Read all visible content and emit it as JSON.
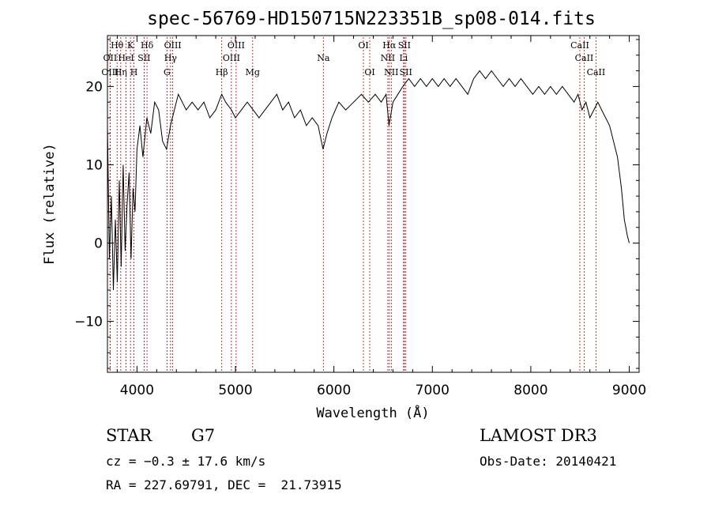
{
  "chart_data": {
    "type": "line",
    "title": "spec-56769-HD150715N223351B_sp08-014.fits",
    "xlabel": "Wavelength (Å)",
    "ylabel": "Flux (relative)",
    "xlim": [
      3700,
      9100
    ],
    "ylim": [
      -16.5,
      26.5
    ],
    "xticks": [
      4000,
      5000,
      6000,
      7000,
      8000,
      9000
    ],
    "yticks": [
      -10,
      0,
      10,
      20
    ],
    "line_color": "#000000",
    "marker_color": "#c00000",
    "series": [
      {
        "x": [
          3700,
          3720,
          3740,
          3760,
          3780,
          3800,
          3820,
          3840,
          3860,
          3880,
          3900,
          3920,
          3940,
          3960,
          3980,
          4000,
          4030,
          4060,
          4100,
          4140,
          4180,
          4220,
          4260,
          4300,
          4340,
          4380,
          4420,
          4460,
          4500,
          4560,
          4620,
          4680,
          4740,
          4800,
          4860,
          4900,
          4960,
          5000,
          5060,
          5120,
          5180,
          5240,
          5300,
          5360,
          5420,
          5480,
          5540,
          5600,
          5660,
          5720,
          5780,
          5840,
          5890,
          5930,
          5980,
          6050,
          6120,
          6200,
          6280,
          6350,
          6420,
          6480,
          6530,
          6560,
          6600,
          6650,
          6700,
          6760,
          6820,
          6880,
          6940,
          7000,
          7060,
          7120,
          7180,
          7240,
          7300,
          7360,
          7420,
          7480,
          7540,
          7600,
          7660,
          7720,
          7780,
          7840,
          7900,
          7960,
          8020,
          8080,
          8140,
          8200,
          8260,
          8320,
          8380,
          8440,
          8480,
          8520,
          8560,
          8600,
          8640,
          8680,
          8720,
          8760,
          8800,
          8840,
          8880,
          8920,
          8950,
          8980,
          9000
        ],
        "y": [
          15,
          -2,
          6,
          -6,
          3,
          -5,
          8,
          -3,
          10,
          -1,
          5,
          9,
          -2,
          7,
          4,
          12,
          15,
          11,
          16,
          14,
          18,
          17,
          13,
          12,
          15,
          17,
          19,
          18,
          17,
          18,
          17,
          18,
          16,
          17,
          19,
          18,
          17,
          16,
          17,
          18,
          17,
          16,
          17,
          18,
          19,
          17,
          18,
          16,
          17,
          15,
          16,
          15,
          12,
          14,
          16,
          18,
          17,
          18,
          19,
          18,
          19,
          18,
          19,
          15,
          18,
          19,
          20,
          21,
          20,
          21,
          20,
          21,
          20,
          21,
          20,
          21,
          20,
          19,
          21,
          22,
          21,
          22,
          21,
          20,
          21,
          20,
          21,
          20,
          19,
          20,
          19,
          20,
          19,
          20,
          19,
          18,
          19,
          17,
          18,
          16,
          17,
          18,
          17,
          16,
          15,
          13,
          11,
          7,
          3,
          1,
          0
        ]
      }
    ],
    "lines": [
      {
        "name": "Hθ",
        "wl": 3798,
        "row": 1
      },
      {
        "name": "OII",
        "wl": 3727,
        "row": 2
      },
      {
        "name": "OIII",
        "wl": 3727,
        "row": 3
      },
      {
        "name": "K",
        "wl": 3934,
        "row": 1
      },
      {
        "name": "HeI",
        "wl": 3889,
        "row": 2
      },
      {
        "name": "Hη",
        "wl": 3835,
        "row": 3
      },
      {
        "name": "H",
        "wl": 3969,
        "row": 3
      },
      {
        "name": "SII",
        "wl": 4072,
        "row": 2
      },
      {
        "name": "Hδ",
        "wl": 4102,
        "row": 1
      },
      {
        "name": "OIII",
        "wl": 4363,
        "row": 1
      },
      {
        "name": "Hγ",
        "wl": 4341,
        "row": 2
      },
      {
        "name": "G",
        "wl": 4305,
        "row": 3
      },
      {
        "name": "Hβ",
        "wl": 4861,
        "row": 3
      },
      {
        "name": "OIII",
        "wl": 4959,
        "row": 2
      },
      {
        "name": "OIII",
        "wl": 5007,
        "row": 1
      },
      {
        "name": "Mg",
        "wl": 5175,
        "row": 3
      },
      {
        "name": "Na",
        "wl": 5893,
        "row": 2
      },
      {
        "name": "OI",
        "wl": 6300,
        "row": 1
      },
      {
        "name": "OI",
        "wl": 6364,
        "row": 3
      },
      {
        "name": "Hα",
        "wl": 6563,
        "row": 1
      },
      {
        "name": "NII",
        "wl": 6548,
        "row": 2
      },
      {
        "name": "NII",
        "wl": 6583,
        "row": 3
      },
      {
        "name": "SII",
        "wl": 6716,
        "row": 1
      },
      {
        "name": "Li",
        "wl": 6708,
        "row": 2
      },
      {
        "name": "SII",
        "wl": 6731,
        "row": 3
      },
      {
        "name": "CaII",
        "wl": 8498,
        "row": 1
      },
      {
        "name": "CaII",
        "wl": 8542,
        "row": 2
      },
      {
        "name": "CaII",
        "wl": 8662,
        "row": 3
      }
    ]
  },
  "info": {
    "object_class": "STAR",
    "subclass": "G7",
    "survey": "LAMOST DR3",
    "cz": "cz = −0.3 ± 17.6 km/s",
    "obs_date": "Obs-Date: 20140421",
    "coords": "RA = 227.69791, DEC =  21.73915"
  }
}
